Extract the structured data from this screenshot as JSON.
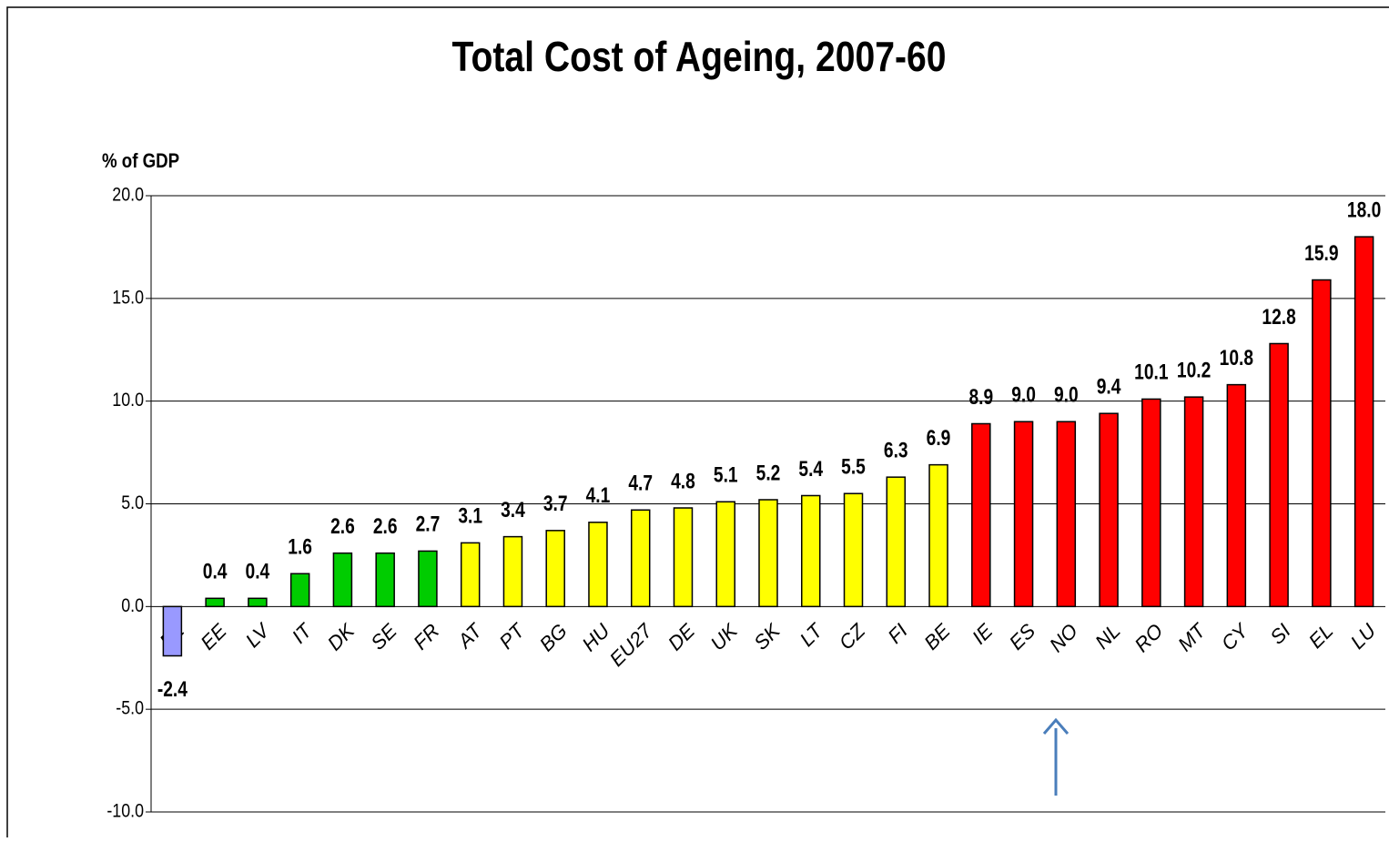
{
  "chart_data": {
    "type": "bar",
    "title": "Total Cost of Ageing, 2007-60",
    "y_label": "% of GDP",
    "categories": [
      "PL",
      "EE",
      "LV",
      "IT",
      "DK",
      "SE",
      "FR",
      "AT",
      "PT",
      "BG",
      "HU",
      "EU27",
      "DE",
      "UK",
      "SK",
      "LT",
      "CZ",
      "FI",
      "BE",
      "IE",
      "ES",
      "NO",
      "NL",
      "RO",
      "MT",
      "CY",
      "SI",
      "EL",
      "LU"
    ],
    "values": [
      -2.4,
      0.4,
      0.4,
      1.6,
      2.6,
      2.6,
      2.7,
      3.1,
      3.4,
      3.7,
      4.1,
      4.7,
      4.8,
      5.1,
      5.2,
      5.4,
      5.5,
      6.3,
      6.9,
      8.9,
      9.0,
      9.0,
      9.4,
      10.1,
      10.2,
      10.8,
      12.8,
      15.9,
      18.0
    ],
    "value_labels": [
      "-2.4",
      "0.4",
      "0.4",
      "1.6",
      "2.6",
      "2.6",
      "2.7",
      "3.1",
      "3.4",
      "3.7",
      "4.1",
      "4.7",
      "4.8",
      "5.1",
      "5.2",
      "5.4",
      "5.5",
      "6.3",
      "6.9",
      "8.9",
      "9.0",
      "9.0",
      "9.4",
      "10.1",
      "10.2",
      "10.8",
      "12.8",
      "15.9",
      "18.0"
    ],
    "colors": [
      "#9999ff",
      "#00cc00",
      "#00cc00",
      "#00cc00",
      "#00cc00",
      "#00cc00",
      "#00cc00",
      "#ffff00",
      "#ffff00",
      "#ffff00",
      "#ffff00",
      "#ffff00",
      "#ffff00",
      "#ffff00",
      "#ffff00",
      "#ffff00",
      "#ffff00",
      "#ffff00",
      "#ffff00",
      "#ff0000",
      "#ff0000",
      "#ff0000",
      "#ff0000",
      "#ff0000",
      "#ff0000",
      "#ff0000",
      "#ff0000",
      "#ff0000",
      "#ff0000"
    ],
    "ylim": [
      -10,
      20
    ],
    "yticks": [
      {
        "value": -10,
        "label": "-10.0"
      },
      {
        "value": -5,
        "label": "-5.0"
      },
      {
        "value": 0,
        "label": "0.0"
      },
      {
        "value": 5,
        "label": "5.0"
      },
      {
        "value": 10,
        "label": "10.0"
      },
      {
        "value": 15,
        "label": "15.0"
      },
      {
        "value": 20,
        "label": "20.0"
      }
    ],
    "grid": true
  }
}
